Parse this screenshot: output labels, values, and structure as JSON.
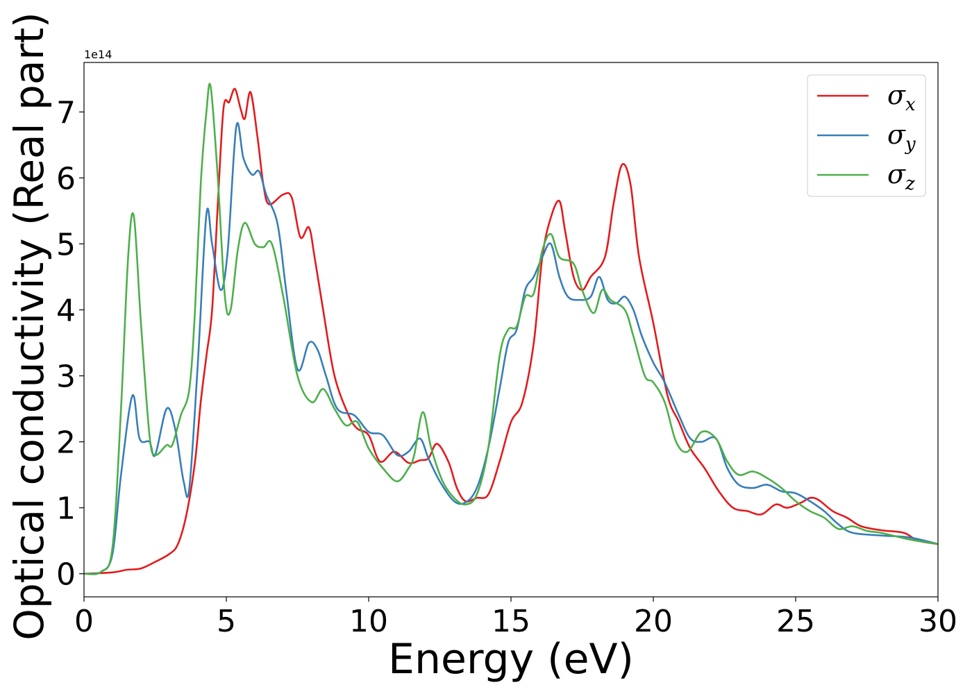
{
  "chart_data": {
    "type": "line",
    "xlabel": "Energy (eV)",
    "ylabel": "Optical conductivity (Real part)",
    "offset_text": "1e14",
    "xlim": [
      0,
      30
    ],
    "ylim": [
      -0.35,
      7.75
    ],
    "y_scale_factor": 100000000000000.0,
    "xticks": [
      0,
      5,
      10,
      15,
      20,
      25,
      30
    ],
    "yticks": [
      0,
      1,
      2,
      3,
      4,
      5,
      6,
      7
    ],
    "grid": false,
    "legend_position": "top-right",
    "series": [
      {
        "name": "σ_x",
        "legend_base": "σ",
        "legend_sub": "x",
        "color": "#e41a1c",
        "points": [
          [
            0,
            0
          ],
          [
            1,
            0.02
          ],
          [
            1.5,
            0.06
          ],
          [
            2,
            0.08
          ],
          [
            2.5,
            0.18
          ],
          [
            3,
            0.3
          ],
          [
            3.3,
            0.45
          ],
          [
            3.6,
            0.9
          ],
          [
            3.9,
            1.7
          ],
          [
            4.1,
            2.6
          ],
          [
            4.3,
            3.3
          ],
          [
            4.5,
            4.0
          ],
          [
            4.7,
            5.6
          ],
          [
            4.9,
            7.05
          ],
          [
            5.1,
            7.15
          ],
          [
            5.3,
            7.35
          ],
          [
            5.5,
            7.05
          ],
          [
            5.65,
            6.9
          ],
          [
            5.85,
            7.3
          ],
          [
            6.1,
            6.6
          ],
          [
            6.3,
            5.9
          ],
          [
            6.5,
            5.6
          ],
          [
            7.0,
            5.75
          ],
          [
            7.3,
            5.7
          ],
          [
            7.6,
            5.1
          ],
          [
            7.9,
            5.25
          ],
          [
            8.1,
            4.8
          ],
          [
            8.4,
            4.0
          ],
          [
            8.8,
            3.0
          ],
          [
            9.3,
            2.4
          ],
          [
            9.6,
            2.2
          ],
          [
            10,
            2.1
          ],
          [
            10.4,
            1.7
          ],
          [
            10.9,
            1.85
          ],
          [
            11.4,
            1.68
          ],
          [
            11.8,
            1.72
          ],
          [
            12.1,
            1.75
          ],
          [
            12.4,
            1.97
          ],
          [
            12.8,
            1.7
          ],
          [
            13.1,
            1.3
          ],
          [
            13.4,
            1.1
          ],
          [
            13.8,
            1.15
          ],
          [
            14.2,
            1.2
          ],
          [
            14.6,
            1.7
          ],
          [
            15,
            2.3
          ],
          [
            15.4,
            2.6
          ],
          [
            15.8,
            3.5
          ],
          [
            16.1,
            4.8
          ],
          [
            16.4,
            5.4
          ],
          [
            16.7,
            5.65
          ],
          [
            16.9,
            5.2
          ],
          [
            17.2,
            4.5
          ],
          [
            17.5,
            4.3
          ],
          [
            17.8,
            4.5
          ],
          [
            18.3,
            4.8
          ],
          [
            18.6,
            5.6
          ],
          [
            18.9,
            6.2
          ],
          [
            19.2,
            5.9
          ],
          [
            19.5,
            4.8
          ],
          [
            20,
            3.8
          ],
          [
            20.5,
            2.7
          ],
          [
            20.9,
            2.3
          ],
          [
            21.3,
            1.9
          ],
          [
            21.8,
            1.6
          ],
          [
            22.3,
            1.25
          ],
          [
            22.8,
            1.0
          ],
          [
            23.3,
            0.95
          ],
          [
            23.8,
            0.9
          ],
          [
            24.3,
            1.05
          ],
          [
            24.7,
            1.0
          ],
          [
            25.2,
            1.08
          ],
          [
            25.5,
            1.15
          ],
          [
            25.8,
            1.12
          ],
          [
            26.3,
            0.95
          ],
          [
            26.8,
            0.85
          ],
          [
            27.3,
            0.72
          ],
          [
            28,
            0.66
          ],
          [
            28.8,
            0.62
          ],
          [
            29.3,
            0.5
          ],
          [
            30,
            0.45
          ]
        ]
      },
      {
        "name": "σ_y",
        "legend_base": "σ",
        "legend_sub": "y",
        "color": "#377eb8",
        "points": [
          [
            0,
            0
          ],
          [
            0.6,
            0.03
          ],
          [
            1.0,
            0.3
          ],
          [
            1.3,
            1.5
          ],
          [
            1.7,
            2.7
          ],
          [
            1.95,
            2.05
          ],
          [
            2.3,
            2.0
          ],
          [
            2.5,
            1.8
          ],
          [
            2.9,
            2.5
          ],
          [
            3.2,
            2.2
          ],
          [
            3.5,
            1.4
          ],
          [
            3.7,
            1.3
          ],
          [
            4.0,
            3.2
          ],
          [
            4.3,
            5.45
          ],
          [
            4.5,
            5.0
          ],
          [
            4.8,
            4.3
          ],
          [
            5.05,
            4.9
          ],
          [
            5.35,
            6.78
          ],
          [
            5.6,
            6.3
          ],
          [
            5.9,
            6.05
          ],
          [
            6.15,
            6.1
          ],
          [
            6.4,
            5.75
          ],
          [
            6.8,
            5.3
          ],
          [
            7.1,
            4.3
          ],
          [
            7.5,
            3.1
          ],
          [
            7.9,
            3.5
          ],
          [
            8.2,
            3.4
          ],
          [
            8.5,
            3.0
          ],
          [
            8.9,
            2.5
          ],
          [
            9.5,
            2.4
          ],
          [
            10,
            2.15
          ],
          [
            10.5,
            2.1
          ],
          [
            11,
            1.8
          ],
          [
            11.4,
            1.85
          ],
          [
            11.8,
            2.05
          ],
          [
            12.1,
            1.75
          ],
          [
            12.5,
            1.4
          ],
          [
            13,
            1.1
          ],
          [
            13.4,
            1.08
          ],
          [
            13.8,
            1.3
          ],
          [
            14.2,
            1.9
          ],
          [
            14.6,
            2.8
          ],
          [
            14.9,
            3.5
          ],
          [
            15.2,
            3.7
          ],
          [
            15.5,
            4.3
          ],
          [
            15.8,
            4.5
          ],
          [
            16.1,
            4.8
          ],
          [
            16.4,
            5.0
          ],
          [
            16.7,
            4.5
          ],
          [
            17.0,
            4.2
          ],
          [
            17.4,
            4.15
          ],
          [
            17.8,
            4.2
          ],
          [
            18.1,
            4.5
          ],
          [
            18.4,
            4.15
          ],
          [
            18.7,
            4.1
          ],
          [
            19.0,
            4.2
          ],
          [
            19.3,
            4.0
          ],
          [
            19.6,
            3.6
          ],
          [
            20,
            3.2
          ],
          [
            20.4,
            2.9
          ],
          [
            20.9,
            2.4
          ],
          [
            21.3,
            2.05
          ],
          [
            21.7,
            2.0
          ],
          [
            22.2,
            2.05
          ],
          [
            22.6,
            1.6
          ],
          [
            23,
            1.35
          ],
          [
            23.5,
            1.3
          ],
          [
            24.0,
            1.35
          ],
          [
            24.5,
            1.25
          ],
          [
            25,
            1.22
          ],
          [
            25.5,
            1.1
          ],
          [
            26,
            0.95
          ],
          [
            26.5,
            0.75
          ],
          [
            27,
            0.62
          ],
          [
            28,
            0.58
          ],
          [
            29,
            0.55
          ],
          [
            30,
            0.45
          ]
        ]
      },
      {
        "name": "σ_z",
        "legend_base": "σ",
        "legend_sub": "z",
        "color": "#4daf4a",
        "points": [
          [
            0,
            0
          ],
          [
            0.6,
            0.03
          ],
          [
            1.0,
            0.4
          ],
          [
            1.3,
            2.5
          ],
          [
            1.55,
            4.8
          ],
          [
            1.75,
            5.42
          ],
          [
            2.0,
            3.8
          ],
          [
            2.3,
            2.1
          ],
          [
            2.5,
            1.8
          ],
          [
            2.9,
            1.95
          ],
          [
            3.1,
            1.95
          ],
          [
            3.4,
            2.4
          ],
          [
            3.7,
            2.8
          ],
          [
            3.9,
            4.0
          ],
          [
            4.1,
            5.9
          ],
          [
            4.3,
            7.0
          ],
          [
            4.45,
            7.38
          ],
          [
            4.7,
            6.0
          ],
          [
            4.95,
            4.2
          ],
          [
            5.15,
            4.0
          ],
          [
            5.4,
            4.9
          ],
          [
            5.65,
            5.32
          ],
          [
            6.0,
            5.0
          ],
          [
            6.3,
            4.95
          ],
          [
            6.6,
            5.0
          ],
          [
            7.0,
            4.2
          ],
          [
            7.5,
            3.0
          ],
          [
            8.0,
            2.6
          ],
          [
            8.4,
            2.8
          ],
          [
            8.8,
            2.5
          ],
          [
            9.2,
            2.25
          ],
          [
            9.6,
            2.3
          ],
          [
            10,
            1.9
          ],
          [
            10.5,
            1.6
          ],
          [
            11.0,
            1.4
          ],
          [
            11.4,
            1.6
          ],
          [
            11.6,
            1.8
          ],
          [
            11.9,
            2.45
          ],
          [
            12.2,
            1.9
          ],
          [
            12.6,
            1.4
          ],
          [
            13.0,
            1.15
          ],
          [
            13.4,
            1.05
          ],
          [
            13.8,
            1.2
          ],
          [
            14.2,
            1.9
          ],
          [
            14.6,
            3.3
          ],
          [
            14.9,
            3.7
          ],
          [
            15.2,
            3.75
          ],
          [
            15.5,
            4.2
          ],
          [
            15.8,
            4.25
          ],
          [
            16.1,
            4.9
          ],
          [
            16.4,
            5.15
          ],
          [
            16.7,
            4.8
          ],
          [
            17.2,
            4.7
          ],
          [
            17.5,
            4.3
          ],
          [
            17.9,
            3.95
          ],
          [
            18.2,
            4.3
          ],
          [
            18.5,
            4.15
          ],
          [
            19.0,
            4.0
          ],
          [
            19.3,
            3.6
          ],
          [
            19.7,
            3.0
          ],
          [
            20.0,
            2.9
          ],
          [
            20.4,
            2.6
          ],
          [
            20.8,
            2.0
          ],
          [
            21.2,
            1.85
          ],
          [
            21.7,
            2.15
          ],
          [
            22.2,
            2.05
          ],
          [
            22.6,
            1.7
          ],
          [
            23,
            1.5
          ],
          [
            23.5,
            1.55
          ],
          [
            24.0,
            1.45
          ],
          [
            24.5,
            1.3
          ],
          [
            25,
            1.1
          ],
          [
            25.5,
            0.95
          ],
          [
            26,
            0.85
          ],
          [
            26.5,
            0.68
          ],
          [
            27,
            0.72
          ],
          [
            27.5,
            0.65
          ],
          [
            28,
            0.62
          ],
          [
            29,
            0.52
          ],
          [
            30,
            0.45
          ]
        ]
      }
    ]
  }
}
